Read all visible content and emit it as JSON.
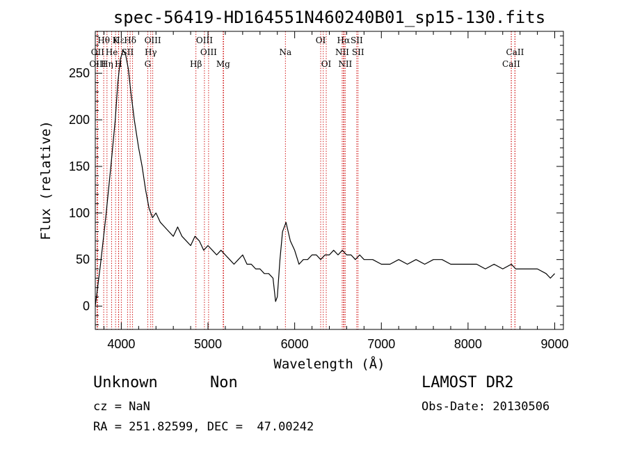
{
  "chart_data": {
    "type": "line",
    "title": "spec-56419-HD164551N460240B01_sp15-130.fits",
    "xlabel": "Wavelength (Å)",
    "ylabel": "Flux (relative)",
    "xlim": [
      3700,
      9100
    ],
    "ylim": [
      -25,
      295
    ],
    "xticks": [
      4000,
      5000,
      6000,
      7000,
      8000,
      9000
    ],
    "yticks": [
      0,
      50,
      100,
      150,
      200,
      250
    ],
    "grid": false,
    "line_color": "#000000",
    "marker_color": "#cc0000",
    "series": [
      {
        "x": [
          3700,
          3760,
          3820,
          3880,
          3930,
          3960,
          3990,
          4020,
          4050,
          4080,
          4110,
          4150,
          4200,
          4240,
          4280,
          4320,
          4360,
          4400,
          4450,
          4500,
          4550,
          4600,
          4650,
          4700,
          4750,
          4800,
          4850,
          4900,
          4950,
          5000,
          5050,
          5100,
          5150,
          5200,
          5250,
          5300,
          5350,
          5400,
          5450,
          5500,
          5550,
          5600,
          5650,
          5700,
          5750,
          5780,
          5800,
          5830,
          5860,
          5900,
          5950,
          6000,
          6050,
          6100,
          6150,
          6200,
          6250,
          6300,
          6350,
          6400,
          6450,
          6500,
          6550,
          6600,
          6650,
          6700,
          6750,
          6800,
          6900,
          7000,
          7100,
          7200,
          7300,
          7400,
          7500,
          7600,
          7700,
          7800,
          7900,
          8000,
          8100,
          8200,
          8300,
          8400,
          8500,
          8550,
          8600,
          8700,
          8800,
          8900,
          8950,
          9000
        ],
        "y": [
          0,
          45,
          95,
          150,
          200,
          240,
          265,
          275,
          270,
          255,
          230,
          200,
          170,
          150,
          125,
          105,
          95,
          100,
          90,
          85,
          80,
          75,
          85,
          75,
          70,
          65,
          75,
          70,
          60,
          65,
          60,
          55,
          60,
          55,
          50,
          45,
          50,
          55,
          45,
          45,
          40,
          40,
          35,
          35,
          30,
          5,
          10,
          50,
          80,
          90,
          70,
          60,
          45,
          50,
          50,
          55,
          55,
          50,
          55,
          55,
          60,
          55,
          60,
          55,
          55,
          50,
          55,
          50,
          50,
          45,
          45,
          50,
          45,
          50,
          45,
          50,
          50,
          45,
          45,
          45,
          45,
          40,
          45,
          40,
          45,
          40,
          40,
          40,
          40,
          35,
          30,
          35
        ]
      }
    ],
    "lines": [
      {
        "label": "Hθ",
        "x": 3797,
        "row": 1
      },
      {
        "label": "OII",
        "x": 3727,
        "row": 2
      },
      {
        "label": "OIII",
        "x": 3727,
        "row": 3
      },
      {
        "label": "He",
        "x": 3889,
        "row": 2
      },
      {
        "label": "Hη",
        "x": 3835,
        "row": 3
      },
      {
        "label": "K",
        "x": 3934,
        "row": 1
      },
      {
        "label": "H",
        "x": 3968,
        "row": 3
      },
      {
        "label": "Hε",
        "x": 3970,
        "row": 1
      },
      {
        "label": "SII",
        "x": 4072,
        "row": 2
      },
      {
        "label": "Hδ",
        "x": 4102,
        "row": 1
      },
      {
        "label": "OIII",
        "x": 4363,
        "row": 1
      },
      {
        "label": "Hγ",
        "x": 4340,
        "row": 2
      },
      {
        "label": "G",
        "x": 4305,
        "row": 3
      },
      {
        "label": "OIII",
        "x": 4959,
        "row": 1
      },
      {
        "label": "OIII",
        "x": 5007,
        "row": 2
      },
      {
        "label": "Hβ",
        "x": 4861,
        "row": 3
      },
      {
        "label": "Mg",
        "x": 5175,
        "row": 3
      },
      {
        "label": "Na",
        "x": 5893,
        "row": 2
      },
      {
        "label": "OI",
        "x": 6300,
        "row": 1
      },
      {
        "label": "OI",
        "x": 6364,
        "row": 3
      },
      {
        "label": "Hα",
        "x": 6563,
        "row": 1
      },
      {
        "label": "NII",
        "x": 6548,
        "row": 2
      },
      {
        "label": "NII",
        "x": 6583,
        "row": 3
      },
      {
        "label": "SII",
        "x": 6716,
        "row": 1
      },
      {
        "label": "SII",
        "x": 6731,
        "row": 2
      },
      {
        "label": "CaII",
        "x": 8542,
        "row": 2
      },
      {
        "label": "CaII",
        "x": 8498,
        "row": 3
      }
    ],
    "extra_marker_lines": [
      3720,
      4000,
      4130,
      4340,
      4363,
      5180,
      6330,
      6570,
      8500,
      8540
    ]
  },
  "info": {
    "object_class": "Unknown",
    "subclass": "Non",
    "redshift": "cz = NaN",
    "coords": "RA = 251.82599, DEC =  47.00242",
    "survey": "LAMOST DR2",
    "obs_date": "Obs-Date: 20130506"
  }
}
